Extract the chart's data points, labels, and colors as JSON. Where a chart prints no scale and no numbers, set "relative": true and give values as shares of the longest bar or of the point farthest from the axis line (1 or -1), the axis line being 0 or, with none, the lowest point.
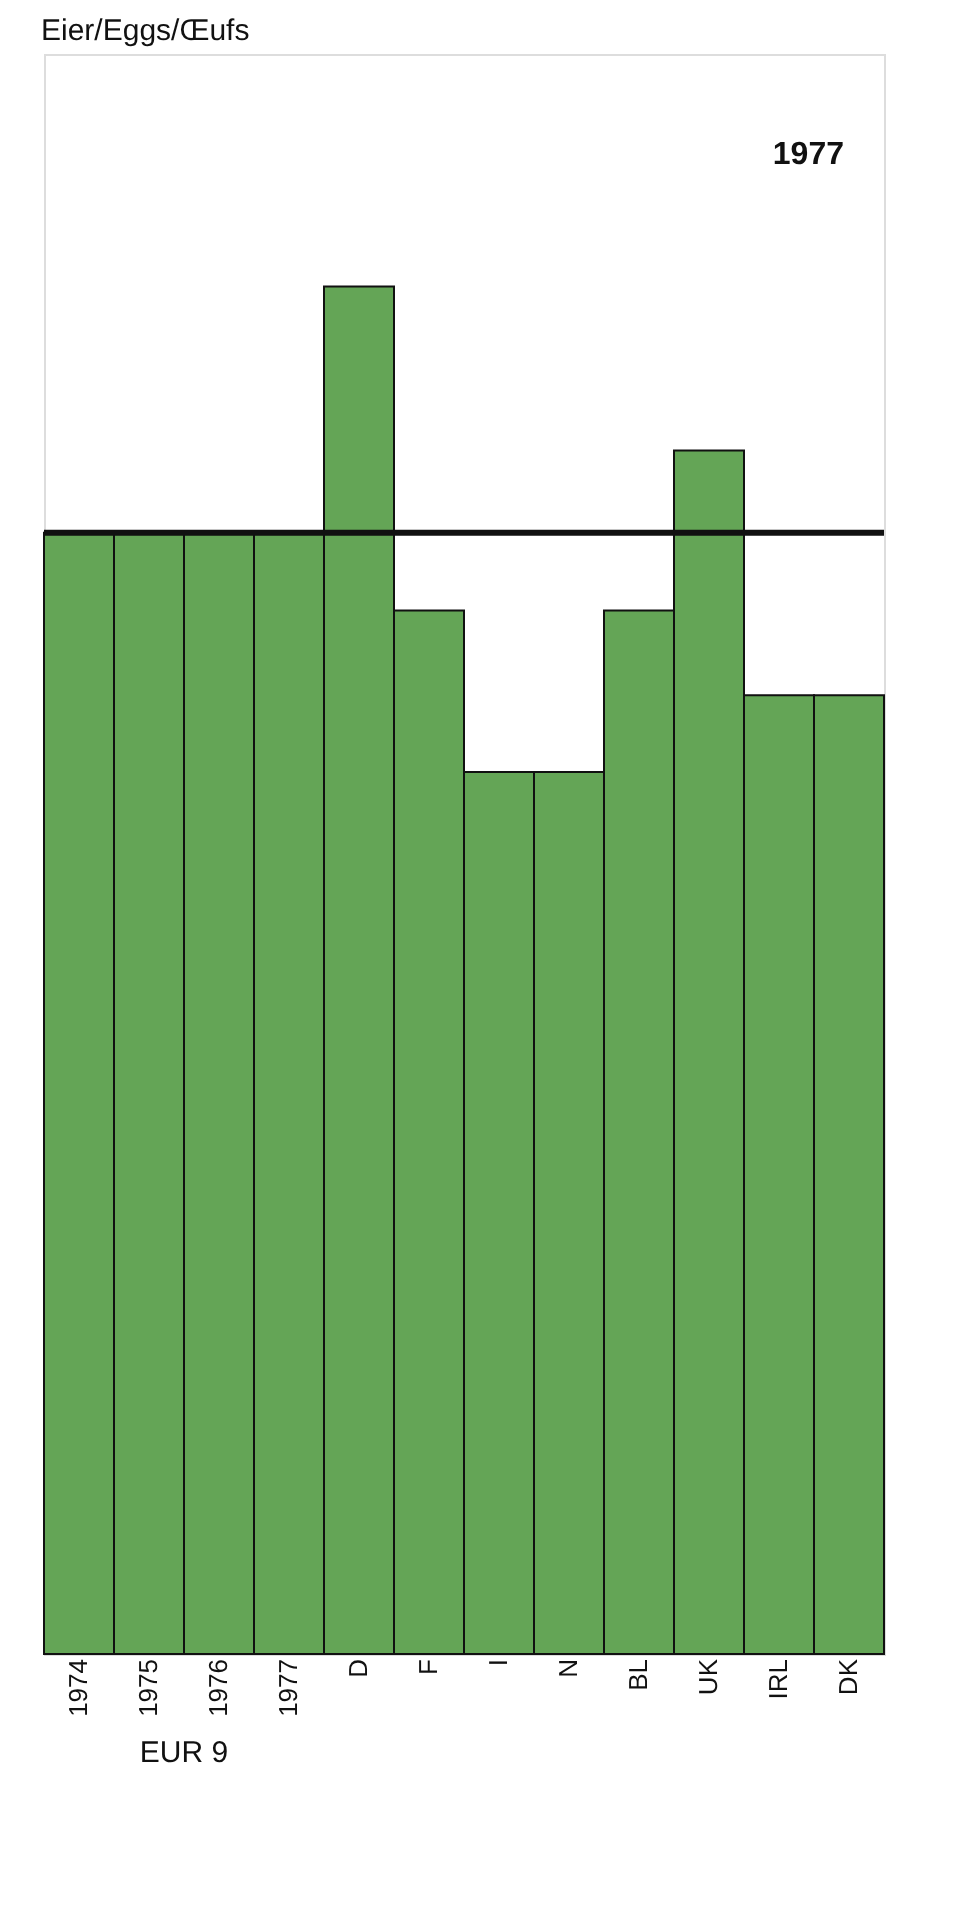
{
  "chart_data": {
    "type": "bar",
    "title": "Eier/Eggs/Œufs",
    "relative": true,
    "categories": [
      "1974",
      "1975",
      "1976",
      "1977",
      "D",
      "F",
      "I",
      "N",
      "BL",
      "UK",
      "IRL",
      "DK"
    ],
    "values": [
      0.82,
      0.82,
      0.82,
      0.82,
      1,
      0.763,
      0.645,
      0.645,
      0.763,
      0.88,
      0.701,
      0.701
    ],
    "color": "#64a556",
    "ref_lines": [
      {
        "axis": "y",
        "value": 0.82,
        "color": "#111111"
      }
    ],
    "annotations": [
      "EUR 9",
      "1977"
    ]
  }
}
